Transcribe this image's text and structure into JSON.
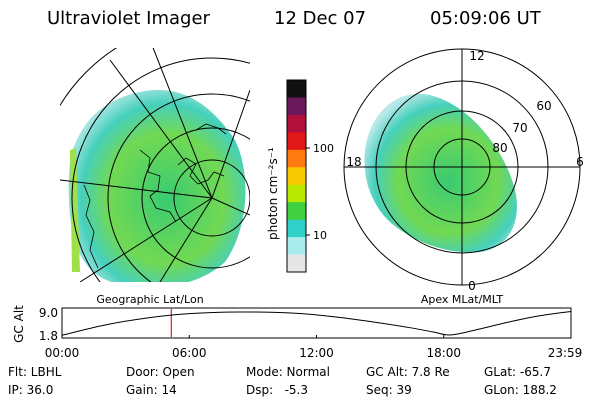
{
  "header": {
    "title": "Ultraviolet Imager",
    "date": "12 Dec 07",
    "time": "05:09:06 UT"
  },
  "colorbar": {
    "label": "photon cm⁻²s⁻¹",
    "ticks": [
      "100",
      "10"
    ],
    "colors": [
      "#101010",
      "#6a1a5a",
      "#b0103a",
      "#e01818",
      "#ff7a10",
      "#f8c800",
      "#b8e800",
      "#40d040",
      "#30d0c8",
      "#a8ecec",
      "#e6e6e6"
    ]
  },
  "panels": {
    "geographic_label": "Geographic Lat/Lon",
    "apex_label": "Apex MLat/MLT",
    "mlt_labels": {
      "top": "12",
      "left": "18",
      "right": "6",
      "bottom": "0"
    },
    "mlat_labels": [
      "60",
      "70",
      "80"
    ]
  },
  "chart_data": {
    "type": "line",
    "title": "",
    "ylabel": "GC Alt",
    "yticks": [
      "9.0",
      "1.8"
    ],
    "ylim": [
      1.8,
      9.0
    ],
    "xlabels": [
      "00:00",
      "06:00",
      "12:00",
      "18:00",
      "23:59"
    ],
    "xlim_hours": [
      0,
      23.98
    ],
    "series": [
      {
        "name": "GC Alt",
        "x": [
          0,
          2,
          4,
          6,
          8.3,
          11,
          13,
          15,
          16.5,
          17.5,
          18.3,
          19.5,
          21,
          22.5,
          23.98
        ],
        "y": [
          2.0,
          4.8,
          6.8,
          8.0,
          8.45,
          8.1,
          7.0,
          5.4,
          4.0,
          2.9,
          2.1,
          3.5,
          5.6,
          7.4,
          8.6
        ]
      }
    ],
    "marker_hour": 5.15
  },
  "footer": {
    "col1": [
      "Flt: LBHL",
      "IP: 36.0"
    ],
    "col2": [
      "Door: Open",
      "Gain: 14"
    ],
    "col3": [
      "Mode: Normal",
      "Dsp:   -5.3"
    ],
    "col4": [
      "GC Alt: 7.8 Re",
      "Seq: 39"
    ],
    "col5": [
      "GLat: -65.7",
      "GLon: 188.2"
    ]
  }
}
